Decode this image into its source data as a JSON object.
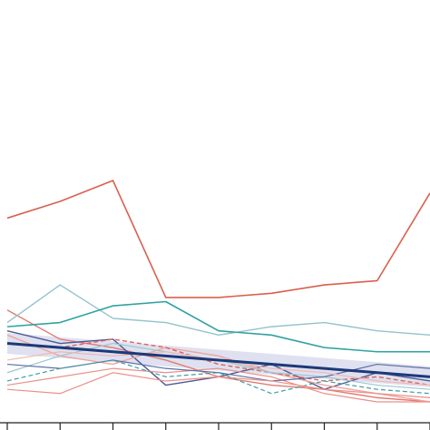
{
  "chart_data": {
    "type": "line",
    "x": [
      0,
      1,
      2,
      3,
      4,
      5,
      6,
      7,
      8
    ],
    "xlim": [
      0,
      8
    ],
    "ylim": [
      0,
      100
    ],
    "grid": false,
    "legend": "none",
    "title": "",
    "xlabel": "",
    "ylabel": "",
    "series": [
      {
        "color": "#d9604f",
        "style": "solid",
        "width": 1.6,
        "values": [
          49,
          53,
          58,
          30,
          30,
          31,
          33,
          34,
          55
        ]
      },
      {
        "color": "#e07b72",
        "style": "solid",
        "width": 1.4,
        "values": [
          27,
          20,
          18,
          15,
          11,
          9,
          8,
          6,
          5
        ]
      },
      {
        "color": "#93c3cb",
        "style": "solid",
        "width": 1.4,
        "values": [
          24,
          33,
          25,
          24,
          21,
          23,
          24,
          22,
          21
        ]
      },
      {
        "color": "#2fa2a0",
        "style": "solid",
        "width": 1.6,
        "values": [
          23,
          24,
          28,
          29,
          22,
          21,
          18,
          17,
          17
        ]
      },
      {
        "color": "#4c5a94",
        "style": "solid",
        "width": 1.4,
        "values": [
          22,
          19,
          20,
          9,
          11,
          14,
          8,
          12,
          10
        ]
      },
      {
        "color": "#f0a49c",
        "style": "solid",
        "width": 1.4,
        "values": [
          21,
          16,
          14,
          18,
          16,
          12,
          9,
          7,
          5
        ]
      },
      {
        "color": "#e0625a",
        "style": "dashed",
        "width": 1.4,
        "values": [
          19,
          18,
          20,
          18,
          14,
          12,
          10,
          11,
          9
        ]
      },
      {
        "color": "#9dc6cf",
        "style": "solid",
        "width": 1.2,
        "values": [
          12,
          16,
          19,
          17,
          15,
          12,
          11,
          9,
          8
        ]
      },
      {
        "color": "#e9908a",
        "style": "solid",
        "width": 1.2,
        "values": [
          9,
          11,
          13,
          12,
          13,
          11,
          7,
          5,
          5
        ]
      },
      {
        "color": "#5b6fa5",
        "style": "solid",
        "width": 1.2,
        "values": [
          14,
          13,
          15,
          13,
          12,
          10,
          11,
          14,
          13
        ]
      },
      {
        "color": "#3f9ea3",
        "style": "dashed",
        "width": 1.2,
        "values": [
          10,
          13,
          15,
          11,
          12,
          7,
          10,
          8,
          7
        ]
      },
      {
        "color": "#f2b7b0",
        "style": "solid",
        "width": 1.2,
        "values": [
          15,
          17,
          16,
          17,
          15,
          13,
          12,
          10,
          9
        ]
      },
      {
        "color": "#ec8f88",
        "style": "solid",
        "width": 1.2,
        "values": [
          8,
          7,
          12,
          10,
          11,
          10,
          8,
          7,
          6
        ]
      },
      {
        "color": "#1c3a78",
        "style": "solid",
        "width": 3.0,
        "band": 2.5,
        "values": [
          19,
          18,
          17,
          16,
          15,
          14,
          13,
          12,
          11
        ]
      }
    ]
  }
}
